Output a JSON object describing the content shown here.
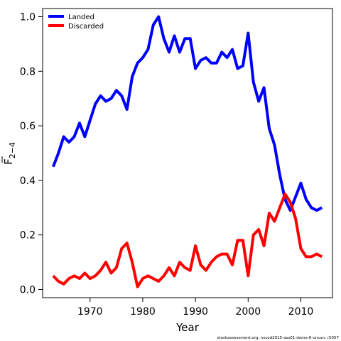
{
  "chart_data": {
    "type": "line",
    "xlabel": "Year",
    "ylabel": "F",
    "ylabel_sub": "2−4",
    "xlim": [
      1961,
      2016
    ],
    "ylim": [
      -0.03,
      1.03
    ],
    "x_ticks": [
      1970,
      1980,
      1990,
      2000,
      2010
    ],
    "x_tick_labels": [
      "1970",
      "1980",
      "1990",
      "2000",
      "2010"
    ],
    "y_ticks": [
      0.0,
      0.2,
      0.4,
      0.6,
      0.8,
      1.0
    ],
    "y_tick_labels": [
      "0.0",
      "0.2",
      "0.4",
      "0.6",
      "0.8",
      "1.0"
    ],
    "grid": false,
    "legend_position": "top-left",
    "x": [
      1963,
      1964,
      1965,
      1966,
      1967,
      1968,
      1969,
      1970,
      1971,
      1972,
      1973,
      1974,
      1975,
      1976,
      1977,
      1978,
      1979,
      1980,
      1981,
      1982,
      1983,
      1984,
      1985,
      1986,
      1987,
      1988,
      1989,
      1990,
      1991,
      1992,
      1993,
      1994,
      1995,
      1996,
      1997,
      1998,
      1999,
      2000,
      2001,
      2002,
      2003,
      2004,
      2005,
      2006,
      2007,
      2008,
      2009,
      2010,
      2011,
      2012,
      2013,
      2014
    ],
    "series": [
      {
        "name": "Landed",
        "color": "#0000ff",
        "values": [
          0.45,
          0.5,
          0.56,
          0.54,
          0.56,
          0.61,
          0.56,
          0.62,
          0.68,
          0.71,
          0.69,
          0.7,
          0.73,
          0.71,
          0.66,
          0.78,
          0.83,
          0.85,
          0.88,
          0.97,
          1.0,
          0.92,
          0.87,
          0.93,
          0.87,
          0.92,
          0.92,
          0.81,
          0.84,
          0.85,
          0.83,
          0.83,
          0.87,
          0.85,
          0.88,
          0.81,
          0.82,
          0.94,
          0.76,
          0.69,
          0.74,
          0.59,
          0.53,
          0.42,
          0.33,
          0.29,
          0.34,
          0.39,
          0.33,
          0.3,
          0.29,
          0.3
        ]
      },
      {
        "name": "Discarded",
        "color": "#ff0000",
        "values": [
          0.05,
          0.03,
          0.02,
          0.04,
          0.05,
          0.04,
          0.06,
          0.04,
          0.05,
          0.07,
          0.1,
          0.06,
          0.08,
          0.15,
          0.17,
          0.1,
          0.01,
          0.04,
          0.05,
          0.04,
          0.03,
          0.05,
          0.08,
          0.05,
          0.1,
          0.08,
          0.07,
          0.16,
          0.09,
          0.07,
          0.1,
          0.12,
          0.13,
          0.13,
          0.09,
          0.18,
          0.18,
          0.05,
          0.2,
          0.22,
          0.16,
          0.28,
          0.25,
          0.3,
          0.35,
          0.32,
          0.26,
          0.15,
          0.12,
          0.12,
          0.13,
          0.12
        ]
      }
    ]
  },
  "footer": "stockassessment.org, nscod2015-ass01-dome-6-uncon; r5057"
}
